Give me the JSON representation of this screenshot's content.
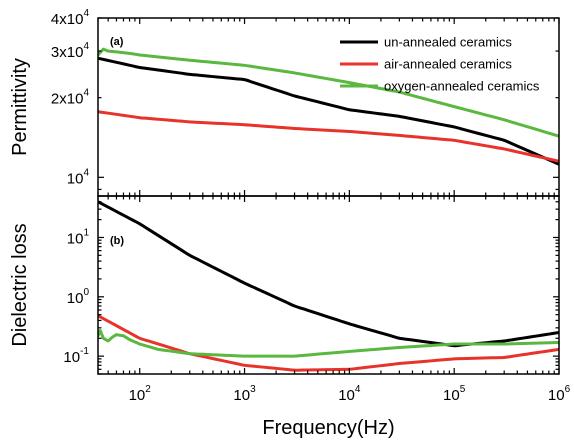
{
  "chart_data": [
    {
      "type": "line",
      "panel_label": "(a)",
      "ylabel": "Permittivity",
      "yscale": "log",
      "ylim": [
        8500,
        40000
      ],
      "xscale": "log",
      "xlim": [
        40,
        1000000
      ],
      "y_ticks": [
        {
          "value": 10000,
          "mantissa": "10",
          "exp": "4"
        },
        {
          "value": 20000,
          "mantissa": "2x10",
          "exp": "4"
        },
        {
          "value": 30000,
          "mantissa": "3x10",
          "exp": "4"
        },
        {
          "value": 40000,
          "mantissa": "4x10",
          "exp": "4"
        }
      ],
      "legend_position": "top-right",
      "series": [
        {
          "name": "un-annealed ceramics",
          "color": "#000000",
          "x": [
            40,
            100,
            300,
            1000,
            3000,
            10000,
            30000,
            100000,
            300000,
            1000000
          ],
          "y": [
            28200,
            26000,
            24500,
            23400,
            20300,
            18000,
            17000,
            15500,
            13800,
            11200
          ]
        },
        {
          "name": "air-annealed ceramics",
          "color": "#e8322c",
          "x": [
            40,
            100,
            300,
            1000,
            3000,
            10000,
            30000,
            100000,
            300000,
            1000000
          ],
          "y": [
            17700,
            16800,
            16200,
            15800,
            15300,
            14900,
            14400,
            13800,
            12800,
            11500
          ]
        },
        {
          "name": "oxygen-annealed ceramics",
          "color": "#5ab840",
          "x": [
            40,
            45,
            50,
            60,
            80,
            100,
            300,
            1000,
            3000,
            10000,
            30000,
            100000,
            300000,
            1000000
          ],
          "y": [
            29000,
            30500,
            30000,
            29800,
            29400,
            29000,
            27700,
            26500,
            24800,
            22800,
            21000,
            18500,
            16500,
            14300
          ]
        }
      ]
    },
    {
      "type": "line",
      "panel_label": "(b)",
      "ylabel": "Dielectric loss",
      "yscale": "log",
      "ylim": [
        0.05,
        50
      ],
      "xscale": "log",
      "xlim": [
        40,
        1000000
      ],
      "y_ticks": [
        {
          "value": 0.1,
          "mantissa": "10",
          "exp": "-1"
        },
        {
          "value": 1,
          "mantissa": "10",
          "exp": "0"
        },
        {
          "value": 10,
          "mantissa": "10",
          "exp": "1"
        }
      ],
      "x_ticks": [
        {
          "value": 100,
          "mantissa": "10",
          "exp": "2"
        },
        {
          "value": 1000,
          "mantissa": "10",
          "exp": "3"
        },
        {
          "value": 10000,
          "mantissa": "10",
          "exp": "4"
        },
        {
          "value": 100000,
          "mantissa": "10",
          "exp": "5"
        },
        {
          "value": 1000000,
          "mantissa": "10",
          "exp": "6"
        }
      ],
      "xlabel": "Frequency(Hz)",
      "series": [
        {
          "name": "un-annealed ceramics",
          "color": "#000000",
          "x": [
            40,
            100,
            300,
            1000,
            3000,
            10000,
            30000,
            100000,
            300000,
            1000000
          ],
          "y": [
            40,
            17,
            5,
            1.7,
            0.7,
            0.35,
            0.2,
            0.15,
            0.18,
            0.25
          ]
        },
        {
          "name": "air-annealed ceramics",
          "color": "#e8322c",
          "x": [
            40,
            100,
            300,
            1000,
            3000,
            10000,
            30000,
            100000,
            300000,
            1000000
          ],
          "y": [
            0.48,
            0.2,
            0.11,
            0.07,
            0.058,
            0.06,
            0.075,
            0.09,
            0.095,
            0.13
          ]
        },
        {
          "name": "oxygen-annealed ceramics",
          "color": "#5ab840",
          "x": [
            40,
            42,
            45,
            50,
            55,
            60,
            70,
            80,
            100,
            150,
            300,
            1000,
            3000,
            10000,
            30000,
            100000,
            300000,
            1000000
          ],
          "y": [
            0.22,
            0.27,
            0.2,
            0.18,
            0.21,
            0.23,
            0.22,
            0.19,
            0.16,
            0.13,
            0.11,
            0.1,
            0.1,
            0.12,
            0.14,
            0.16,
            0.16,
            0.17
          ]
        }
      ]
    }
  ]
}
